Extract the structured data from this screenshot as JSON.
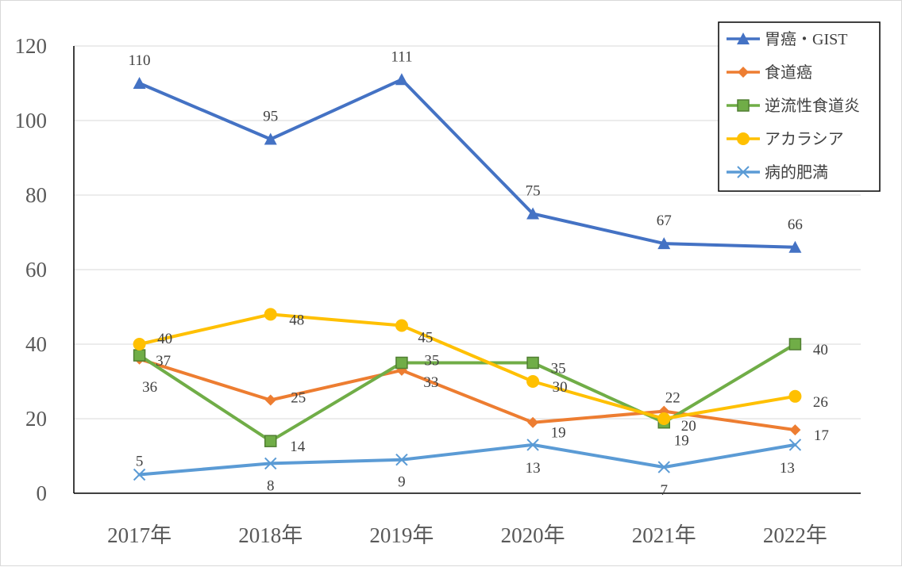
{
  "chart_data": {
    "type": "line",
    "categories": [
      "2017年",
      "2018年",
      "2019年",
      "2020年",
      "2021年",
      "2022年"
    ],
    "ylim": [
      0,
      120
    ],
    "yticks": [
      0,
      20,
      40,
      60,
      80,
      100,
      120
    ],
    "grid": true,
    "legend_position": "top-right",
    "series": [
      {
        "name": "胃癌・GIST",
        "values": [
          110,
          95,
          111,
          75,
          67,
          66
        ],
        "color": "#4472C4",
        "marker": "triangle"
      },
      {
        "name": "食道癌",
        "values": [
          36,
          25,
          33,
          19,
          22,
          17
        ],
        "color": "#ED7D31",
        "marker": "diamond"
      },
      {
        "name": "逆流性食道炎",
        "values": [
          37,
          14,
          35,
          35,
          19,
          40
        ],
        "color": "#70AD47",
        "marker": "square"
      },
      {
        "name": "アカラシア",
        "values": [
          40,
          48,
          45,
          30,
          20,
          26
        ],
        "color": "#FFC000",
        "marker": "circle"
      },
      {
        "name": "病的肥満",
        "values": [
          5,
          8,
          9,
          13,
          7,
          13
        ],
        "color": "#5B9BD5",
        "marker": "x"
      }
    ]
  }
}
